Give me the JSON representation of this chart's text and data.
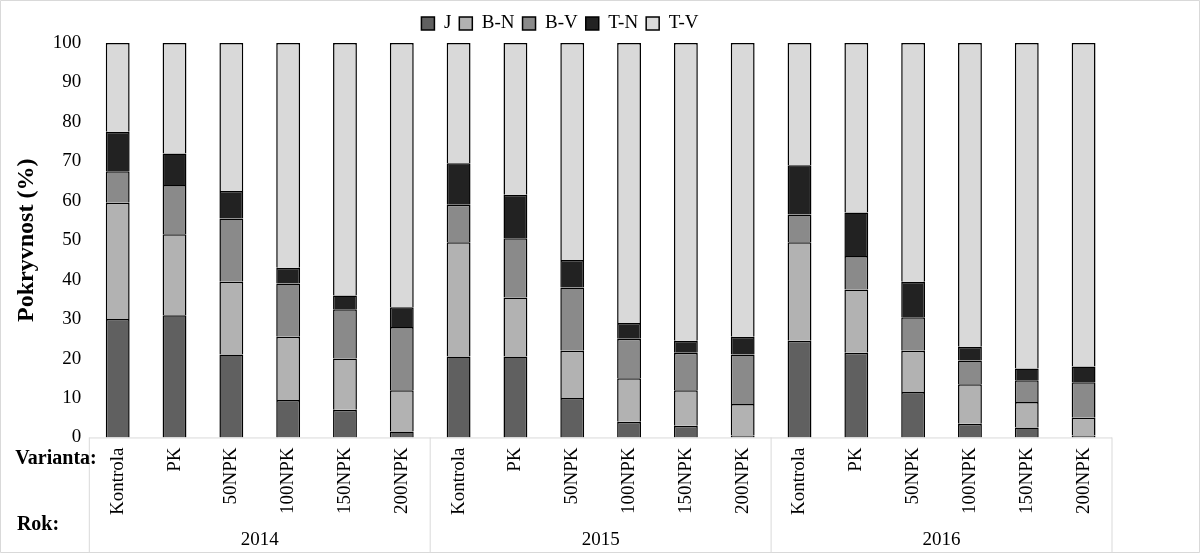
{
  "chart_data": {
    "type": "bar",
    "stacked": true,
    "ylabel": "Pokryvnost (%)",
    "categories": [
      "Kontrola",
      "PK",
      "50NPK",
      "100NPK",
      "150NPK",
      "200NPK",
      "Kontrola",
      "PK",
      "50NPK",
      "100NPK",
      "150NPK",
      "200NPK",
      "Kontrola",
      "PK",
      "50NPK",
      "100NPK",
      "150NPK",
      "200NPK"
    ],
    "series": [
      {
        "name": "J",
        "color": "#606060",
        "values": [
          30,
          31,
          21,
          9.5,
          7,
          1.5,
          20.5,
          20.5,
          10,
          4,
          3,
          0.5,
          24.5,
          21.5,
          11.5,
          3.5,
          2.5,
          0.5
        ]
      },
      {
        "name": "B-N",
        "color": "#b2b2b2",
        "values": [
          29.5,
          20.5,
          18.5,
          16,
          13,
          10.5,
          29,
          15,
          12,
          11,
          9,
          8,
          25,
          16,
          10.5,
          10,
          6.5,
          4.5
        ]
      },
      {
        "name": "B-V",
        "color": "#8a8a8a",
        "values": [
          8,
          12.5,
          16,
          13.5,
          12.5,
          16,
          9.5,
          15,
          16,
          10,
          9.5,
          12.5,
          7,
          8.5,
          8.5,
          6,
          5.5,
          9
        ]
      },
      {
        "name": "T-N",
        "color": "#222222",
        "values": [
          10,
          8,
          7,
          4,
          3.5,
          5,
          10.5,
          11,
          7,
          4,
          3,
          4.5,
          12.5,
          11,
          9,
          3.5,
          3,
          4
        ]
      },
      {
        "name": "T-V",
        "color": "#d9d9d9",
        "values": [
          22.5,
          28,
          37.5,
          57,
          64,
          67,
          30.5,
          38.5,
          55,
          71,
          75.5,
          74.5,
          31,
          43,
          60.5,
          77,
          82.5,
          82
        ]
      }
    ],
    "ylim": [
      0,
      100
    ],
    "yticks": [
      0,
      10,
      20,
      30,
      40,
      50,
      60,
      70,
      80,
      90,
      100
    ],
    "grid": false,
    "legend": "top",
    "annotations": [
      "Varianta:",
      "Rok:",
      "2014",
      "2015",
      "2016"
    ]
  }
}
